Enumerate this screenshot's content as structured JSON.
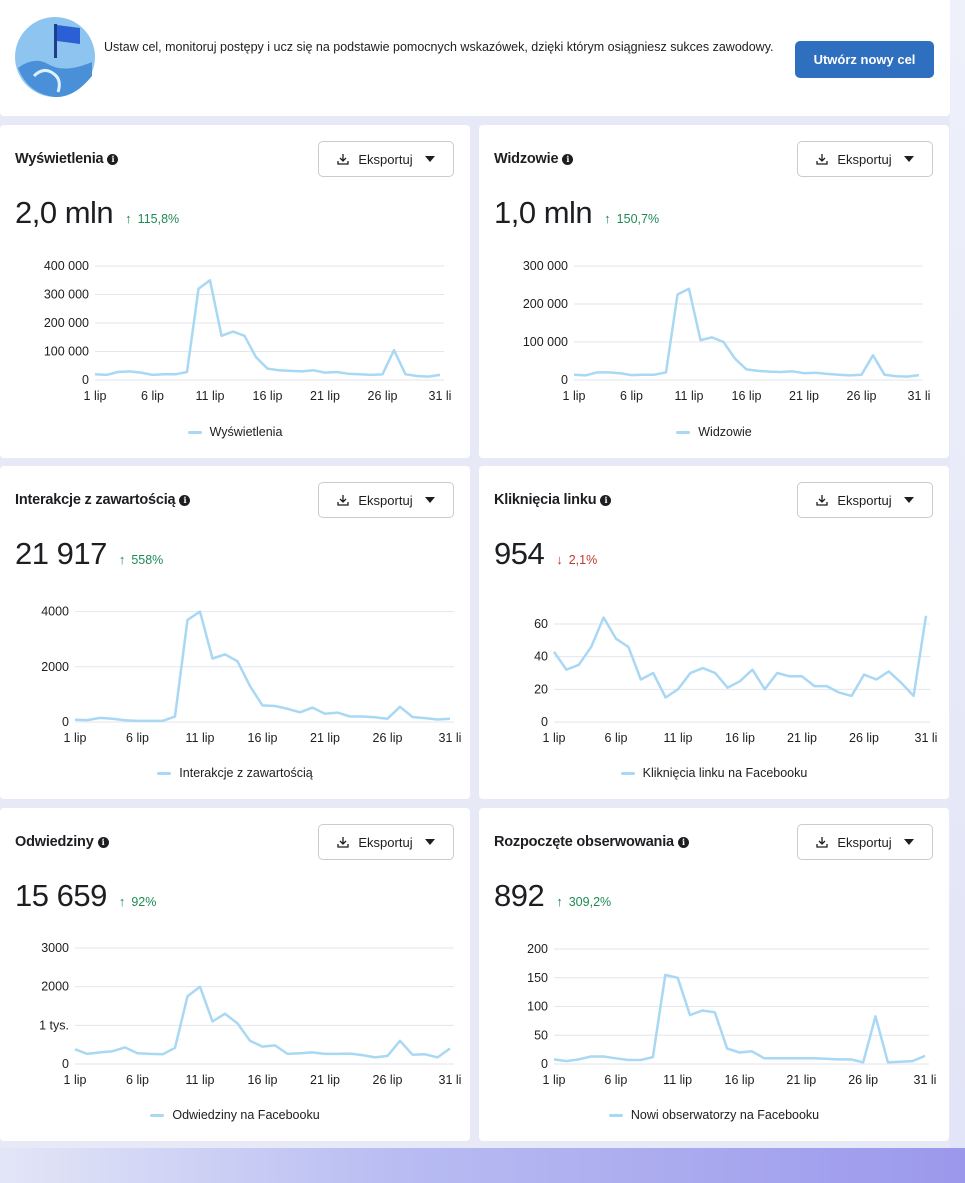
{
  "banner": {
    "text": "Ustaw cel, monitoruj postępy i ucz się na podstawie pomocnych wskazówek, dzięki którym osiągniesz sukces zawodowy.",
    "button_label": "Utwórz nowy cel"
  },
  "colors": {
    "accent": "#2f6fbf",
    "line": "#a9d8f4",
    "up": "#1f8a55",
    "down": "#c0392b"
  },
  "export_label": "Eksportuj",
  "x_ticks": [
    "1 lip",
    "6 lip",
    "11 lip",
    "16 lip",
    "21 lip",
    "26 lip",
    "31 li"
  ],
  "cards": [
    {
      "title": "Wyświetlenia",
      "value": "2,0 mln",
      "change": "115,8%",
      "direction": "up",
      "legend": "Wyświetlenia"
    },
    {
      "title": "Widzowie",
      "value": "1,0 mln",
      "change": "150,7%",
      "direction": "up",
      "legend": "Widzowie"
    },
    {
      "title": "Interakcje z zawartością",
      "value": "21 917",
      "change": "558%",
      "direction": "up",
      "legend": "Interakcje z zawartością"
    },
    {
      "title": "Kliknięcia linku",
      "value": "954",
      "change": "2,1%",
      "direction": "down",
      "legend": "Kliknięcia linku na Facebooku"
    },
    {
      "title": "Odwiedziny",
      "value": "15 659",
      "change": "92%",
      "direction": "up",
      "legend": "Odwiedziny na Facebooku"
    },
    {
      "title": "Rozpoczęte obserwowania",
      "value": "892",
      "change": "309,2%",
      "direction": "up",
      "legend": "Nowi obserwatorzy na Facebooku"
    }
  ],
  "chart_data": [
    {
      "type": "line",
      "y_tick_labels": [
        "0",
        "100 000",
        "200 000",
        "300 000",
        "400 000"
      ],
      "ylim": [
        0,
        400000
      ],
      "series": [
        {
          "name": "Wyświetlenia",
          "values": [
            20000,
            18000,
            28000,
            30000,
            26000,
            18000,
            20000,
            20000,
            28000,
            320000,
            350000,
            155000,
            170000,
            155000,
            80000,
            40000,
            34000,
            32000,
            30000,
            34000,
            26000,
            28000,
            22000,
            20000,
            18000,
            20000,
            105000,
            20000,
            14000,
            12000,
            18000
          ]
        }
      ]
    },
    {
      "type": "line",
      "y_tick_labels": [
        "0",
        "100 000",
        "200 000",
        "300 000"
      ],
      "ylim": [
        0,
        300000
      ],
      "series": [
        {
          "name": "Widzowie",
          "values": [
            14000,
            12000,
            20000,
            20000,
            18000,
            13000,
            14000,
            14000,
            20000,
            225000,
            240000,
            105000,
            112000,
            100000,
            56000,
            28000,
            24000,
            22000,
            21000,
            23000,
            18000,
            19000,
            16000,
            14000,
            12000,
            14000,
            65000,
            14000,
            10000,
            9000,
            13000
          ]
        }
      ]
    },
    {
      "type": "line",
      "y_tick_labels": [
        "0",
        "2000",
        "4000"
      ],
      "ylim": [
        0,
        5000
      ],
      "series": [
        {
          "name": "Interakcje z zawartością",
          "values": [
            80,
            70,
            150,
            120,
            60,
            40,
            40,
            40,
            200,
            3700,
            4000,
            2300,
            2450,
            2200,
            1300,
            600,
            580,
            480,
            350,
            520,
            300,
            340,
            200,
            200,
            170,
            120,
            550,
            180,
            140,
            90,
            120
          ]
        }
      ]
    },
    {
      "type": "line",
      "y_tick_labels": [
        "0",
        "20",
        "40",
        "60"
      ],
      "ylim": [
        0,
        60
      ],
      "series": [
        {
          "name": "Kliknięcia linku na Facebooku",
          "values": [
            43,
            32,
            35,
            46,
            64,
            51,
            46,
            26,
            30,
            15,
            20,
            30,
            33,
            30,
            21,
            25,
            32,
            20,
            30,
            28,
            28,
            22,
            22,
            18,
            16,
            29,
            26,
            31,
            24,
            16,
            65
          ]
        }
      ]
    },
    {
      "type": "line",
      "y_tick_labels": [
        "0",
        "1 tys.",
        "2000",
        "3000"
      ],
      "ylim": [
        0,
        3000
      ],
      "series": [
        {
          "name": "Odwiedziny na Facebooku",
          "values": [
            380,
            260,
            300,
            330,
            430,
            280,
            260,
            250,
            420,
            1750,
            2000,
            1100,
            1300,
            1050,
            600,
            450,
            480,
            260,
            280,
            300,
            260,
            260,
            270,
            230,
            170,
            210,
            600,
            240,
            250,
            170,
            400
          ]
        }
      ]
    },
    {
      "type": "line",
      "y_tick_labels": [
        "0",
        "50",
        "100",
        "150",
        "200"
      ],
      "ylim": [
        0,
        200
      ],
      "series": [
        {
          "name": "Nowi obserwatorzy na Facebooku",
          "values": [
            8,
            5,
            8,
            13,
            13,
            10,
            7,
            7,
            12,
            155,
            150,
            85,
            93,
            90,
            27,
            20,
            22,
            10,
            10,
            10,
            10,
            10,
            9,
            8,
            8,
            3,
            83,
            3,
            4,
            5,
            14
          ]
        }
      ]
    }
  ]
}
